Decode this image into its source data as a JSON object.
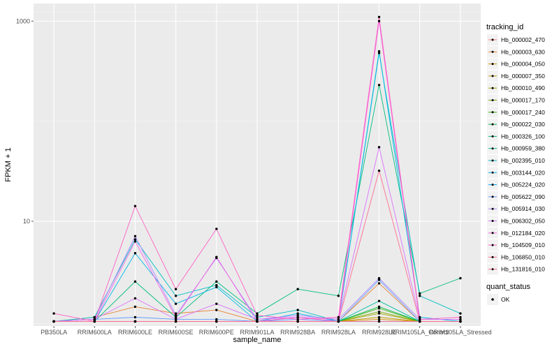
{
  "chart_data": {
    "type": "line",
    "title": "",
    "xlabel": "sample_name",
    "ylabel": "FPKM + 1",
    "yscale": "log10",
    "ylim": [
      0.9,
      1500
    ],
    "yticks": [
      10,
      1000
    ],
    "ytick_labels": [
      "10",
      "1000"
    ],
    "grid": true,
    "legend_position": "right",
    "categories": [
      "PB350LA",
      "RRIM600LA",
      "RRIM600LE",
      "RRIM600SE",
      "RRIM600PE",
      "RRIM901LA",
      "RRIM928BA",
      "RRIM928LA",
      "RRIM928LE",
      "RRIM105LA_Control",
      "RRIM105LA_Stressed"
    ],
    "legend_title": "tracking_id",
    "series": [
      {
        "name": "Hb_000002_470",
        "color": "#F8766D",
        "values": [
          1,
          1,
          1,
          1,
          1,
          1,
          1,
          1,
          1,
          1,
          1
        ]
      },
      {
        "name": "Hb_000003_630",
        "color": "#EA8331",
        "values": [
          1,
          1.1,
          1.4,
          1.2,
          1.3,
          1,
          1.1,
          1,
          2.4,
          1,
          1
        ]
      },
      {
        "name": "Hb_000004_050",
        "color": "#D89000",
        "values": [
          1,
          1,
          1,
          1,
          1,
          1,
          1,
          1,
          1.05,
          1,
          1
        ]
      },
      {
        "name": "Hb_000007_350",
        "color": "#C09B00",
        "values": [
          1,
          1,
          1,
          1,
          1,
          1,
          1,
          1,
          1.1,
          1,
          1
        ]
      },
      {
        "name": "Hb_000010_490",
        "color": "#A3A500",
        "values": [
          1,
          1,
          1,
          1,
          1,
          1,
          1,
          1,
          1.2,
          1,
          1
        ]
      },
      {
        "name": "Hb_000017_170",
        "color": "#7CAE00",
        "values": [
          1,
          1,
          1,
          1,
          1,
          1,
          1,
          1,
          1.25,
          1,
          1
        ]
      },
      {
        "name": "Hb_000017_240",
        "color": "#39B600",
        "values": [
          1,
          1,
          1,
          1,
          1,
          1,
          1,
          1,
          1.35,
          1,
          1
        ]
      },
      {
        "name": "Hb_000022_030",
        "color": "#00BB4E",
        "values": [
          1,
          1,
          1,
          1,
          1,
          1,
          1,
          1,
          1.4,
          1,
          1
        ]
      },
      {
        "name": "Hb_000326_100",
        "color": "#00BF7D",
        "values": [
          1,
          1,
          2.5,
          1.1,
          2.5,
          1.2,
          2.1,
          1.8,
          230,
          1.9,
          2.7
        ]
      },
      {
        "name": "Hb_000959_380",
        "color": "#00C1A3",
        "values": [
          1,
          1,
          1,
          1,
          1,
          1,
          1,
          1,
          1.6,
          1,
          1
        ]
      },
      {
        "name": "Hb_002395_010",
        "color": "#00BFC4",
        "values": [
          1,
          1.1,
          6.6,
          1.8,
          2.3,
          1.1,
          1.3,
          1,
          480,
          1.8,
          1.2
        ]
      },
      {
        "name": "Hb_003144_020",
        "color": "#00B8E7",
        "values": [
          1,
          1,
          4.8,
          1.5,
          2.2,
          1,
          1.2,
          1,
          500,
          1.1,
          1
        ]
      },
      {
        "name": "Hb_005224_020",
        "color": "#00A9FF",
        "values": [
          1,
          1,
          1,
          1,
          1,
          1,
          1,
          1,
          1,
          1,
          1
        ]
      },
      {
        "name": "Hb_005622_090",
        "color": "#619CFF",
        "values": [
          1,
          1.05,
          1.1,
          1.05,
          1.05,
          1,
          1.05,
          1,
          2.6,
          1,
          1
        ]
      },
      {
        "name": "Hb_005914_030",
        "color": "#AE87FF",
        "values": [
          1,
          1.05,
          7.1,
          1.15,
          4.3,
          1.05,
          1.15,
          1.05,
          2.7,
          1.05,
          1.05
        ]
      },
      {
        "name": "Hb_006302_050",
        "color": "#DB72FB",
        "values": [
          1,
          1.05,
          1.7,
          1.05,
          1.5,
          1.05,
          1.1,
          1.05,
          55,
          1.05,
          1.05
        ]
      },
      {
        "name": "Hb_012184_020",
        "color": "#F564E3",
        "values": [
          1,
          1,
          6.3,
          1.1,
          4.4,
          1,
          1.1,
          1,
          1000,
          1,
          1
        ]
      },
      {
        "name": "Hb_104509_010",
        "color": "#FF61C3",
        "values": [
          1.2,
          1,
          14.2,
          2.1,
          8.4,
          1.15,
          1.05,
          1.1,
          1100,
          1.05,
          1.1
        ]
      },
      {
        "name": "Hb_106850_010",
        "color": "#FF6C91",
        "values": [
          1,
          1,
          1,
          1,
          1,
          1,
          1,
          1,
          1,
          1,
          1
        ]
      },
      {
        "name": "Hb_131816_010",
        "color": "#FF6C91",
        "values": [
          1,
          1,
          1,
          1,
          1,
          1,
          1,
          1,
          32,
          1,
          1
        ]
      }
    ],
    "quant_status_legend": {
      "title": "quant_status",
      "label": "OK"
    }
  }
}
